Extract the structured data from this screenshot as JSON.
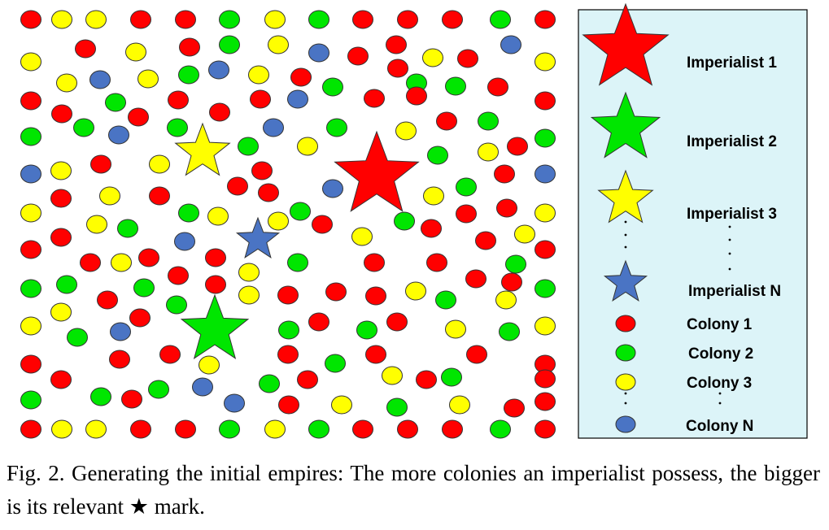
{
  "colors": {
    "red": "#ff0000",
    "green": "#00e600",
    "yellow": "#ffff00",
    "blue": "#4a74c4",
    "legend_bg": "#dcf4f8"
  },
  "legend": {
    "imperialists": [
      {
        "label": "Imperialist 1",
        "color": "red"
      },
      {
        "label": "Imperialist 2",
        "color": "green"
      },
      {
        "label": "Imperialist 3",
        "color": "yellow"
      },
      {
        "label": "Imperialist N",
        "color": "blue"
      }
    ],
    "colonies": [
      {
        "label": "Colony 1",
        "color": "red"
      },
      {
        "label": "Colony 2",
        "color": "green"
      },
      {
        "label": "Colony 3",
        "color": "yellow"
      },
      {
        "label": "Colony N",
        "color": "blue"
      }
    ]
  },
  "caption": {
    "before_star": "Fig. 2. Generating the initial empires: The more colonies an imperialist possess, the bigger is its relevant ",
    "star_glyph": "★",
    "after_star": " mark."
  }
}
